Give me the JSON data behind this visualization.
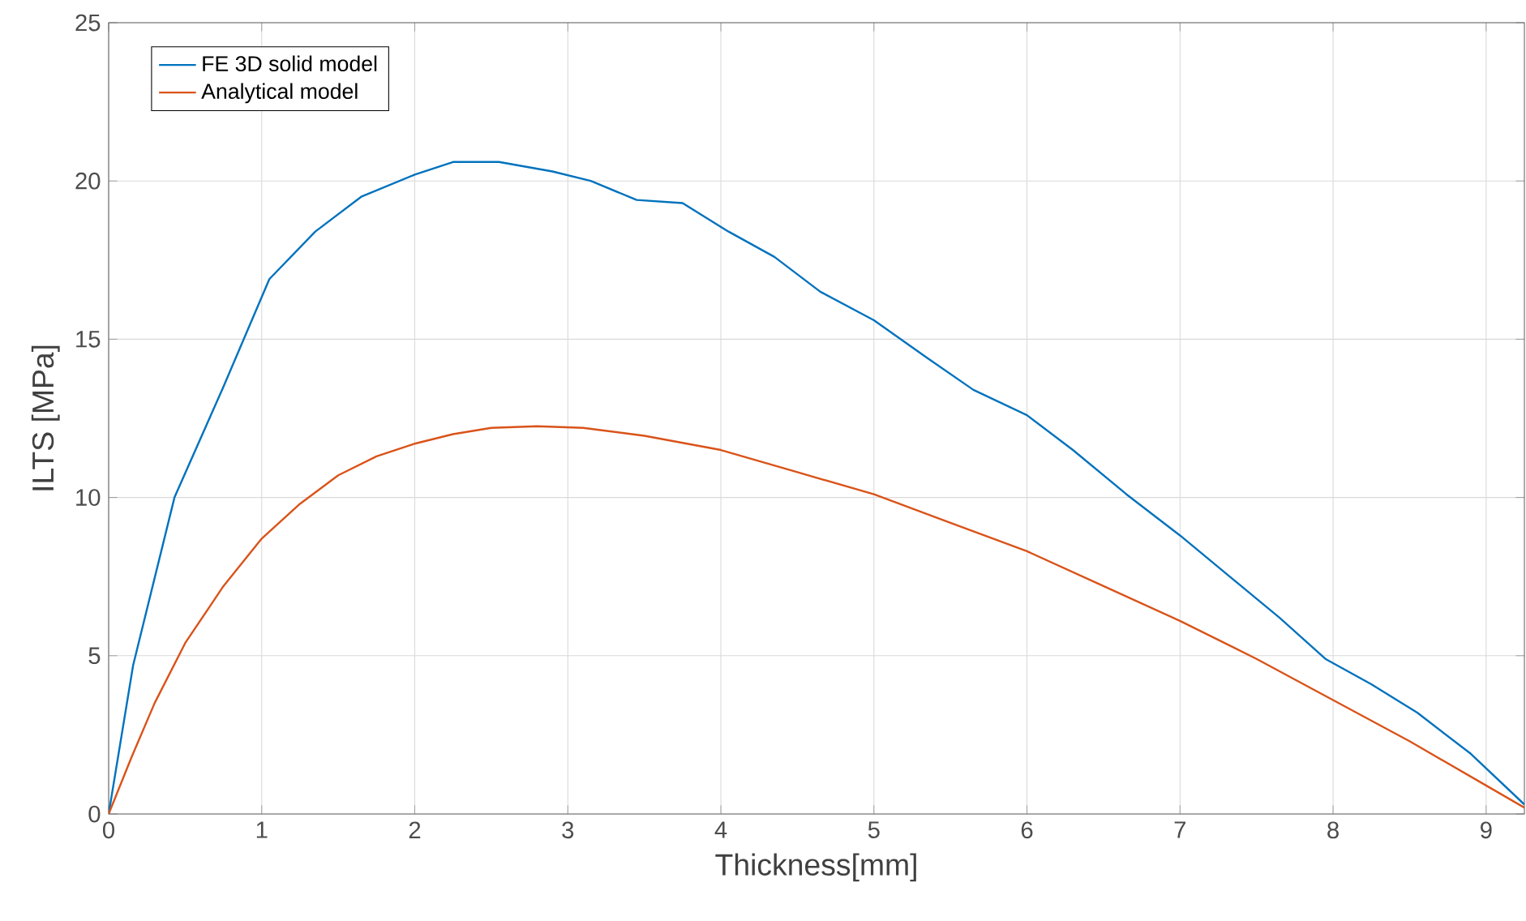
{
  "chart_data": {
    "type": "line",
    "xlabel": "Thickness[mm]",
    "ylabel": "ILTS [MPa]",
    "xlim": [
      0,
      9.25
    ],
    "ylim": [
      0,
      25
    ],
    "xticks": [
      0,
      1,
      2,
      3,
      4,
      5,
      6,
      7,
      8,
      9
    ],
    "yticks": [
      0,
      5,
      10,
      15,
      20,
      25
    ],
    "grid": true,
    "legend": "top left",
    "marker": "none",
    "line_style": "solid",
    "series": [
      {
        "name": "FE 3D solid model",
        "color": "#0072bd",
        "x": [
          0,
          0.16,
          0.43,
          0.75,
          1.05,
          1.35,
          1.65,
          2.0,
          2.25,
          2.55,
          2.9,
          3.15,
          3.45,
          3.75,
          4.05,
          4.35,
          4.65,
          5.0,
          5.35,
          5.65,
          6.0,
          6.3,
          6.65,
          7.0,
          7.35,
          7.65,
          7.95,
          8.25,
          8.55,
          8.9,
          9.25
        ],
        "values": [
          0,
          4.7,
          10.0,
          13.5,
          16.9,
          18.4,
          19.5,
          20.2,
          20.6,
          20.6,
          20.3,
          20.0,
          19.4,
          19.3,
          18.4,
          17.6,
          16.5,
          15.6,
          14.4,
          13.4,
          12.6,
          11.5,
          10.1,
          8.8,
          7.4,
          6.2,
          4.9,
          4.1,
          3.2,
          1.9,
          0.3
        ]
      },
      {
        "name": "Analytical model",
        "color": "#d95319",
        "x": [
          0,
          0.15,
          0.3,
          0.5,
          0.75,
          1.0,
          1.25,
          1.5,
          1.75,
          2.0,
          2.25,
          2.5,
          2.8,
          3.1,
          3.5,
          4.0,
          4.5,
          5.0,
          5.5,
          6.0,
          6.5,
          7.0,
          7.5,
          8.0,
          8.5,
          9.0,
          9.25
        ],
        "values": [
          0,
          1.8,
          3.5,
          5.4,
          7.2,
          8.7,
          9.8,
          10.7,
          11.3,
          11.7,
          12.0,
          12.2,
          12.25,
          12.2,
          11.95,
          11.5,
          10.8,
          10.1,
          9.2,
          8.3,
          7.2,
          6.1,
          4.9,
          3.6,
          2.3,
          0.9,
          0.2
        ]
      }
    ]
  }
}
